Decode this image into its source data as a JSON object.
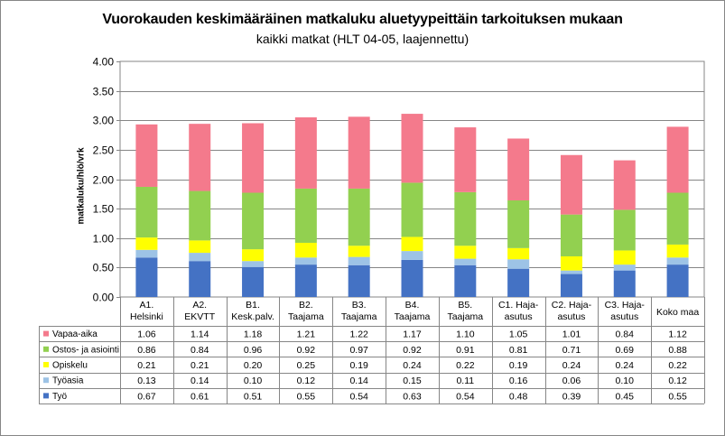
{
  "chart_data": {
    "type": "bar",
    "stacked": true,
    "title": "Vuorokauden keskimääräinen matkaluku aluetyypeittäin tarkoituksen mukaan",
    "subtitle": "kaikki matkat (HLT 04-05, laajennettu)",
    "ylabel": "matkaluku/hlö/vrk",
    "ylim": [
      0,
      4
    ],
    "yticks": [
      "0.00",
      "0.50",
      "1.00",
      "1.50",
      "2.00",
      "2.50",
      "3.00",
      "3.50",
      "4.00"
    ],
    "grid": true,
    "data_table": true,
    "categories": [
      [
        "A1.",
        "Helsinki"
      ],
      [
        "A2.",
        "EKVTT"
      ],
      [
        "B1.",
        "Kesk.palv."
      ],
      [
        "B2.",
        "Taajama"
      ],
      [
        "B3.",
        "Taajama"
      ],
      [
        "B4.",
        "Taajama"
      ],
      [
        "B5.",
        "Taajama"
      ],
      [
        "C1. Haja-",
        "asutus"
      ],
      [
        "C2. Haja-",
        "asutus"
      ],
      [
        "C3. Haja-",
        "asutus"
      ],
      [
        "Koko maa"
      ]
    ],
    "series": [
      {
        "name": "Työ",
        "color": "#4472C4",
        "values": [
          0.67,
          0.61,
          0.51,
          0.55,
          0.54,
          0.63,
          0.54,
          0.48,
          0.39,
          0.45,
          0.55
        ]
      },
      {
        "name": "Työasia",
        "color": "#9DC3E6",
        "values": [
          0.13,
          0.14,
          0.1,
          0.12,
          0.14,
          0.15,
          0.11,
          0.16,
          0.06,
          0.1,
          0.12
        ]
      },
      {
        "name": "Opiskelu",
        "color": "#FFFF00",
        "values": [
          0.21,
          0.21,
          0.2,
          0.25,
          0.19,
          0.24,
          0.22,
          0.19,
          0.24,
          0.24,
          0.22
        ]
      },
      {
        "name": "Ostos- ja asiointi",
        "color": "#92D050",
        "values": [
          0.86,
          0.84,
          0.96,
          0.92,
          0.97,
          0.92,
          0.91,
          0.81,
          0.71,
          0.69,
          0.88
        ]
      },
      {
        "name": "Vapaa-aika",
        "color": "#F47A8C",
        "values": [
          1.06,
          1.14,
          1.18,
          1.21,
          1.22,
          1.17,
          1.1,
          1.05,
          1.01,
          0.84,
          1.12
        ]
      }
    ]
  }
}
